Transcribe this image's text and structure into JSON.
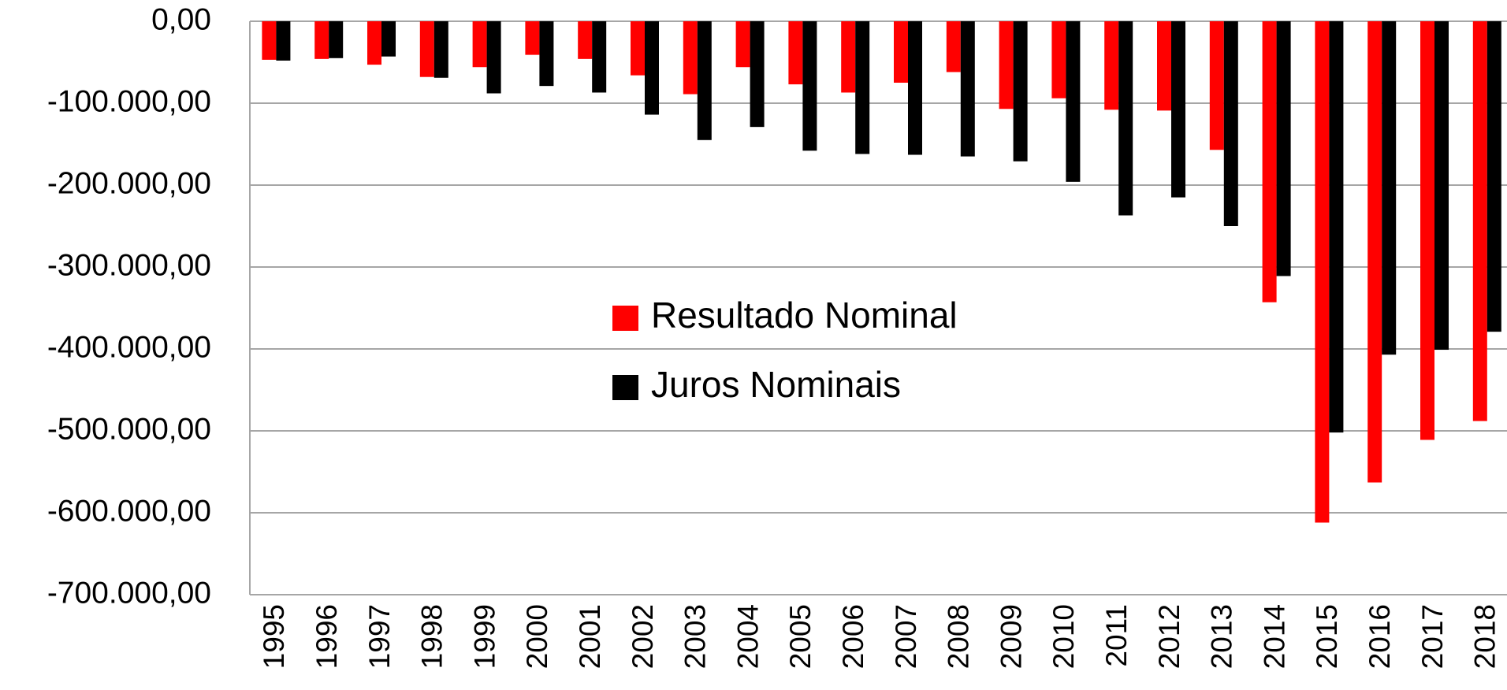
{
  "chart_data": {
    "type": "bar",
    "categories": [
      "1995",
      "1996",
      "1997",
      "1998",
      "1999",
      "2000",
      "2001",
      "2002",
      "2003",
      "2004",
      "2005",
      "2006",
      "2007",
      "2008",
      "2009",
      "2010",
      "2011",
      "2012",
      "2013",
      "2014",
      "2015",
      "2016",
      "2017",
      "2018"
    ],
    "series": [
      {
        "name": "Resultado Nominal",
        "color": "#ff0000",
        "values": [
          -47000,
          -46000,
          -53000,
          -68000,
          -56000,
          -41000,
          -46000,
          -66000,
          -89000,
          -56000,
          -77000,
          -87000,
          -75000,
          -62000,
          -107000,
          -94000,
          -108000,
          -109000,
          -157000,
          -343000,
          -612000,
          -563000,
          -511000,
          -488000
        ]
      },
      {
        "name": "Juros Nominais",
        "color": "#000000",
        "values": [
          -48000,
          -45000,
          -43000,
          -69000,
          -88000,
          -79000,
          -87000,
          -114000,
          -145000,
          -129000,
          -158000,
          -162000,
          -163000,
          -165000,
          -171000,
          -196000,
          -237000,
          -215000,
          -250000,
          -311000,
          -502000,
          -407000,
          -401000,
          -379000
        ]
      }
    ],
    "ylim": [
      -700000,
      0
    ],
    "yticks": [
      {
        "value": 0,
        "label": "0,00"
      },
      {
        "value": -100000,
        "label": "-100.000,00"
      },
      {
        "value": -200000,
        "label": "-200.000,00"
      },
      {
        "value": -300000,
        "label": "-300.000,00"
      },
      {
        "value": -400000,
        "label": "-400.000,00"
      },
      {
        "value": -500000,
        "label": "-500.000,00"
      },
      {
        "value": -600000,
        "label": "-600.000,00"
      },
      {
        "value": -700000,
        "label": "-700.000,00"
      }
    ],
    "grid": true
  }
}
